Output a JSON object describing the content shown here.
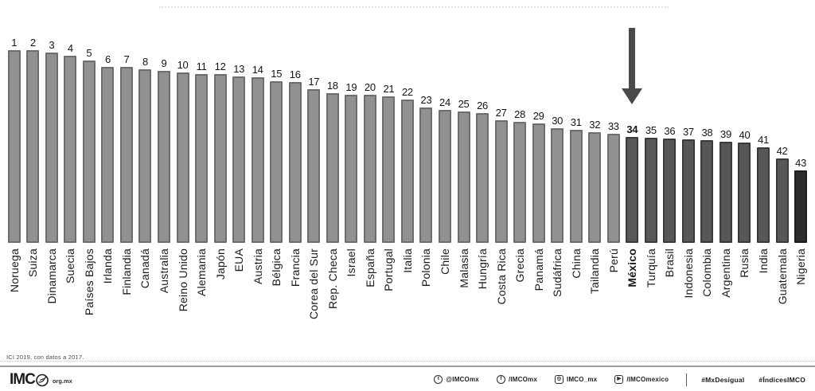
{
  "chart_data": {
    "type": "bar",
    "title": "",
    "xlabel": "",
    "ylabel": "",
    "note": "ranking bar chart, 43 countries, no numeric y-axis shown; values are estimated relative bar heights in pixels",
    "categories": [
      "Noruega",
      "Suiza",
      "Dinamarca",
      "Suecia",
      "Países Bajos",
      "Irlanda",
      "Finlandia",
      "Canadá",
      "Australia",
      "Reino Unido",
      "Alemania",
      "Japón",
      "EUA",
      "Austria",
      "Bélgica",
      "Francia",
      "Corea del Sur",
      "Rep. Checa",
      "Israel",
      "España",
      "Portugal",
      "Italia",
      "Polonia",
      "Chile",
      "Malasia",
      "Hungría",
      "Costa Rica",
      "Grecia",
      "Panamá",
      "Sudáfrica",
      "China",
      "Tailandia",
      "Perú",
      "México",
      "Turquía",
      "Brasil",
      "Indonesia",
      "Colombia",
      "Argentina",
      "Rusia",
      "India",
      "Guatemala",
      "Nigeria"
    ],
    "ranks": [
      1,
      2,
      3,
      4,
      5,
      6,
      7,
      8,
      9,
      10,
      11,
      12,
      13,
      14,
      15,
      16,
      17,
      18,
      19,
      20,
      21,
      22,
      23,
      24,
      25,
      26,
      27,
      28,
      29,
      30,
      31,
      32,
      33,
      34,
      35,
      36,
      37,
      38,
      39,
      40,
      41,
      42,
      43
    ],
    "values": [
      242,
      242,
      239,
      235,
      229,
      221,
      221,
      218,
      216,
      214,
      212,
      212,
      209,
      208,
      203,
      202,
      193,
      188,
      186,
      186,
      184,
      180,
      170,
      167,
      165,
      163,
      154,
      152,
      150,
      144,
      142,
      139,
      137,
      133,
      132,
      131,
      130,
      129,
      127,
      126,
      120,
      106,
      91
    ],
    "highlight": {
      "rank": 34,
      "country": "México"
    },
    "annotation_arrow": {
      "target_rank": 34,
      "color": "#4a4a4a"
    },
    "colors": {
      "light": {
        "fill": "#919191",
        "border": "#6d6d6d",
        "rank_from": 1,
        "rank_to": 33
      },
      "dark": {
        "fill": "#575757",
        "border": "#3a3a3a",
        "rank_from": 34,
        "rank_to": 42
      },
      "darkest": {
        "fill": "#2c2c2c",
        "border": "#1e1e1e",
        "rank_from": 43,
        "rank_to": 43
      }
    },
    "legend": null,
    "grid": false
  },
  "footnote": "ICI 2019, con datos a 2017.",
  "footer": {
    "logo_text": "IMC",
    "logo_o_icon": "imco-circle-pen-icon",
    "logo_suffix": "org.mx",
    "social": [
      {
        "icon": "twitter-icon",
        "glyph": "t",
        "shape": "circle",
        "handle": "@IMCOmx"
      },
      {
        "icon": "facebook-icon",
        "glyph": "f",
        "shape": "circle",
        "handle": "/IMCOmx"
      },
      {
        "icon": "instagram-icon",
        "glyph": "◎",
        "shape": "square",
        "handle": "IMCO_mx"
      },
      {
        "icon": "youtube-icon",
        "glyph": "▶",
        "shape": "square",
        "handle": "/IMCOmexico"
      }
    ],
    "hashtags": [
      "#MxDesigual",
      "#ÍndicesIMCO"
    ]
  }
}
